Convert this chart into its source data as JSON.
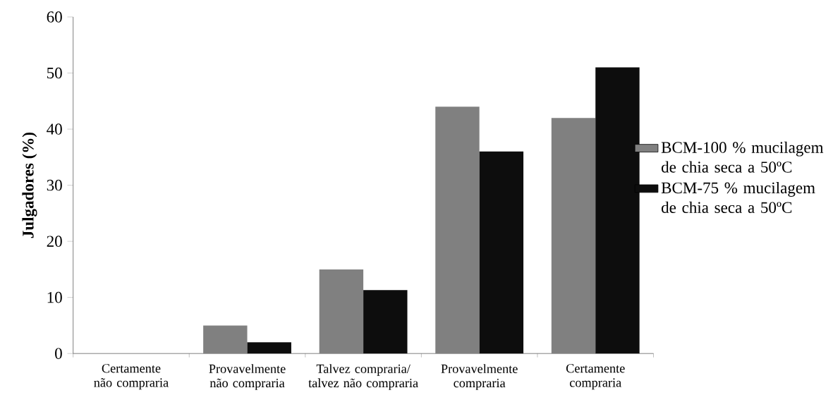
{
  "chart_data": {
    "type": "bar",
    "ylabel": "Julgadores (%)",
    "categories": [
      "Certamente não compraria",
      "Provavelmente não compraria",
      "Talvez compraria/ talvez não compraria",
      "Provavelmente compraria",
      "Certamente compraria"
    ],
    "series": [
      {
        "name": "BCM-100 % mucilagem de chia seca a 50ºC",
        "color": "#808080",
        "values": [
          0,
          5,
          15,
          44,
          42
        ]
      },
      {
        "name": "BCM-75 % mucilagem de chia seca a 50ºC",
        "color": "#0d0d0d",
        "values": [
          0,
          2,
          11.3,
          36,
          51
        ]
      }
    ],
    "ylim": [
      0,
      60
    ],
    "yticks": [
      0,
      10,
      20,
      30,
      40,
      50,
      60
    ],
    "legend": "right"
  }
}
